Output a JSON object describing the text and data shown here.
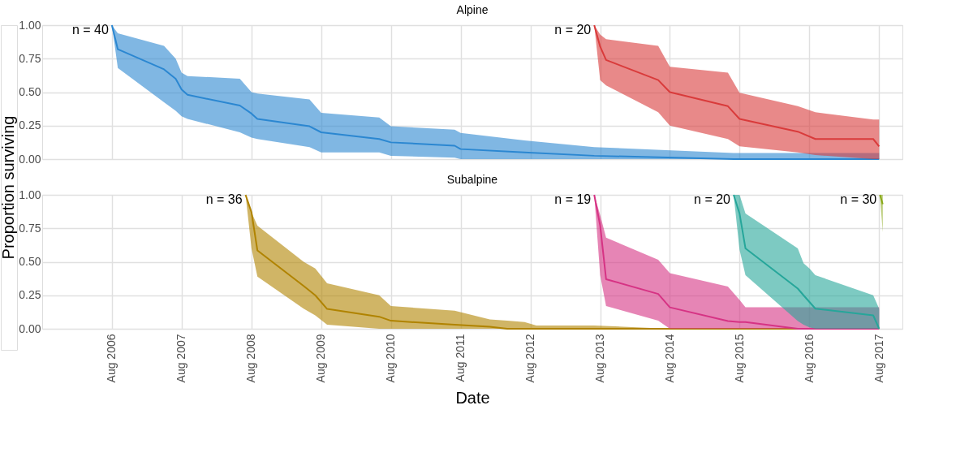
{
  "chart_data": [
    {
      "type": "line",
      "title": "Alpine",
      "ylabel": "Proportion surviving",
      "tick_labels": "y",
      "grid": true,
      "xlim": [
        "2005-08-01",
        "2017-12-01"
      ],
      "xticks": [
        {
          "value": "2006-08-01",
          "label": null
        },
        {
          "value": "2007-08-01",
          "label": null
        },
        {
          "value": "2008-08-01",
          "label": null
        },
        {
          "value": "2009-08-01",
          "label": null
        },
        {
          "value": "2010-08-01",
          "label": null
        },
        {
          "value": "2011-08-01",
          "label": null
        },
        {
          "value": "2012-08-01",
          "label": null
        },
        {
          "value": "2013-08-01",
          "label": null
        },
        {
          "value": "2014-08-01",
          "label": null
        },
        {
          "value": "2015-08-01",
          "label": null
        },
        {
          "value": "2016-08-01",
          "label": null
        },
        {
          "value": "2017-08-01",
          "label": null
        }
      ],
      "ylim": [
        0,
        1
      ],
      "yticks": [
        {
          "value": 0,
          "label": "0.00"
        },
        {
          "value": 0.25,
          "label": "0.25"
        },
        {
          "value": 0.5,
          "label": "0.50"
        },
        {
          "value": 0.75,
          "label": "0.75"
        },
        {
          "value": 1,
          "label": "1.00"
        }
      ],
      "series": [
        {
          "color": "#2b87d1",
          "x": [
            "2006-08",
            "2006-09",
            "2007-05",
            "2007-07",
            "2007-08",
            "2007-09",
            "2008-06",
            "2008-08",
            "2008-09",
            "2009-06",
            "2009-08",
            "2010-06",
            "2010-08",
            "2011-07",
            "2011-08",
            "2012-07",
            "2013-07",
            "2015-07",
            "2017-08"
          ],
          "values": [
            1.0,
            0.82,
            0.67,
            0.6,
            0.52,
            0.48,
            0.4,
            0.34,
            0.3,
            0.245,
            0.2,
            0.15,
            0.125,
            0.1,
            0.075,
            0.05,
            0.025,
            0.0,
            0.0
          ],
          "upper": [
            1.0,
            0.94,
            0.845,
            0.75,
            0.645,
            0.62,
            0.6,
            0.5,
            0.49,
            0.445,
            0.345,
            0.31,
            0.245,
            0.22,
            0.195,
            0.14,
            0.09,
            0.045,
            0.045
          ],
          "lower": [
            1.0,
            0.68,
            0.425,
            0.36,
            0.32,
            0.3,
            0.2,
            0.16,
            0.15,
            0.09,
            0.05,
            0.05,
            0.025,
            0.01,
            0.0,
            0.0,
            0.0,
            0.0,
            0.0
          ]
        },
        {
          "color": "#d93b3b",
          "x": [
            "2013-07",
            "2013-08",
            "2013-09",
            "2014-06",
            "2014-08",
            "2015-06",
            "2015-08",
            "2016-06",
            "2016-09",
            "2017-07",
            "2017-08"
          ],
          "values": [
            1.0,
            0.84,
            0.74,
            0.59,
            0.5,
            0.395,
            0.3,
            0.205,
            0.15,
            0.15,
            0.095
          ],
          "upper": [
            1.0,
            0.93,
            0.895,
            0.845,
            0.69,
            0.645,
            0.495,
            0.395,
            0.35,
            0.295,
            0.295
          ],
          "lower": [
            1.0,
            0.59,
            0.55,
            0.35,
            0.25,
            0.15,
            0.095,
            0.05,
            0.03,
            0.0,
            0.0
          ]
        }
      ],
      "annotations": [
        {
          "text": "n = 40",
          "x": "2006-08",
          "y": 1.0
        },
        {
          "text": "n = 20",
          "x": "2013-07",
          "y": 1.0
        }
      ]
    },
    {
      "type": "line",
      "title": "Subalpine",
      "xlabel": "Date",
      "grid": true,
      "xlim": [
        "2005-08-01",
        "2017-12-01"
      ],
      "xticks": [
        {
          "value": "2006-08-01",
          "label": "Aug 2006"
        },
        {
          "value": "2007-08-01",
          "label": "Aug 2007"
        },
        {
          "value": "2008-08-01",
          "label": "Aug 2008"
        },
        {
          "value": "2009-08-01",
          "label": "Aug 2009"
        },
        {
          "value": "2010-08-01",
          "label": "Aug 2010"
        },
        {
          "value": "2011-08-01",
          "label": "Aug 2011"
        },
        {
          "value": "2012-08-01",
          "label": "Aug 2012"
        },
        {
          "value": "2013-08-01",
          "label": "Aug 2013"
        },
        {
          "value": "2014-08-01",
          "label": "Aug 2014"
        },
        {
          "value": "2015-08-01",
          "label": "Aug 2015"
        },
        {
          "value": "2016-08-01",
          "label": "Aug 2016"
        },
        {
          "value": "2017-08-01",
          "label": "Aug 2017"
        }
      ],
      "ylim": [
        0,
        1
      ],
      "yticks": [
        {
          "value": 0,
          "label": "0.00"
        },
        {
          "value": 0.25,
          "label": "0.25"
        },
        {
          "value": 0.5,
          "label": "0.50"
        },
        {
          "value": 0.75,
          "label": "0.75"
        },
        {
          "value": 1,
          "label": "1.00"
        }
      ],
      "series": [
        {
          "color": "#b08300",
          "x": [
            "2008-07",
            "2008-08",
            "2008-09",
            "2009-05",
            "2009-07",
            "2009-09",
            "2010-06",
            "2010-08",
            "2011-07",
            "2012-01",
            "2012-04",
            "2012-07",
            "2012-09",
            "2013-07",
            "2014-08",
            "2017-08"
          ],
          "values": [
            1.0,
            0.87,
            0.585,
            0.32,
            0.25,
            0.148,
            0.09,
            0.06,
            0.03,
            0.015,
            0.0,
            0.0,
            0.0,
            0.0,
            0.0,
            0.0
          ],
          "upper": [
            1.0,
            0.87,
            0.77,
            0.5,
            0.45,
            0.34,
            0.25,
            0.17,
            0.135,
            0.07,
            0.06,
            0.05,
            0.025,
            0.025,
            0.0,
            0.0
          ],
          "lower": [
            1.0,
            0.6,
            0.39,
            0.15,
            0.1,
            0.03,
            0.0,
            0.0,
            0.0,
            0.0,
            0.0,
            0.0,
            0.0,
            0.0,
            0.0,
            0.0
          ]
        },
        {
          "color": "#d63384",
          "x": [
            "2013-07",
            "2013-08",
            "2013-09",
            "2014-06",
            "2014-08",
            "2015-06",
            "2015-08",
            "2015-09",
            "2016-06",
            "2016-09",
            "2017-08"
          ],
          "values": [
            1.0,
            0.77,
            0.37,
            0.26,
            0.16,
            0.058,
            0.05,
            0.05,
            0.0,
            0.0,
            0.0
          ],
          "upper": [
            1.0,
            0.85,
            0.68,
            0.515,
            0.415,
            0.315,
            0.215,
            0.16,
            0.16,
            0.16,
            0.16
          ],
          "lower": [
            1.0,
            0.4,
            0.17,
            0.06,
            0.0,
            0.0,
            0.0,
            0.0,
            0.0,
            0.0,
            0.0
          ]
        },
        {
          "color": "#26a69a",
          "x": [
            "2015-07",
            "2015-08",
            "2015-09",
            "2016-06",
            "2016-07",
            "2016-08",
            "2016-09",
            "2017-07",
            "2017-08"
          ],
          "values": [
            1.0,
            0.86,
            0.6,
            0.3,
            0.25,
            0.2,
            0.15,
            0.1,
            0.0
          ],
          "upper": [
            1.0,
            1.0,
            0.86,
            0.6,
            0.49,
            0.45,
            0.4,
            0.25,
            0.15
          ],
          "lower": [
            1.0,
            0.59,
            0.4,
            0.058,
            0.03,
            0.01,
            0.0,
            0.0,
            0.0
          ]
        },
        {
          "color": "#8aaa1a",
          "x": [
            "2017-08-05",
            "2017-08-20"
          ],
          "values": [
            1.0,
            0.93
          ],
          "upper": [
            1.0,
            1.0
          ],
          "lower": [
            1.0,
            0.72
          ]
        }
      ],
      "annotations": [
        {
          "text": "n = 36",
          "x": "2008-07",
          "y": 1.0
        },
        {
          "text": "n = 19",
          "x": "2013-07",
          "y": 1.0
        },
        {
          "text": "n = 20",
          "x": "2015-07",
          "y": 1.0
        },
        {
          "text": "n = 30",
          "x": "2017-08-05",
          "y": 1.0
        }
      ]
    }
  ]
}
